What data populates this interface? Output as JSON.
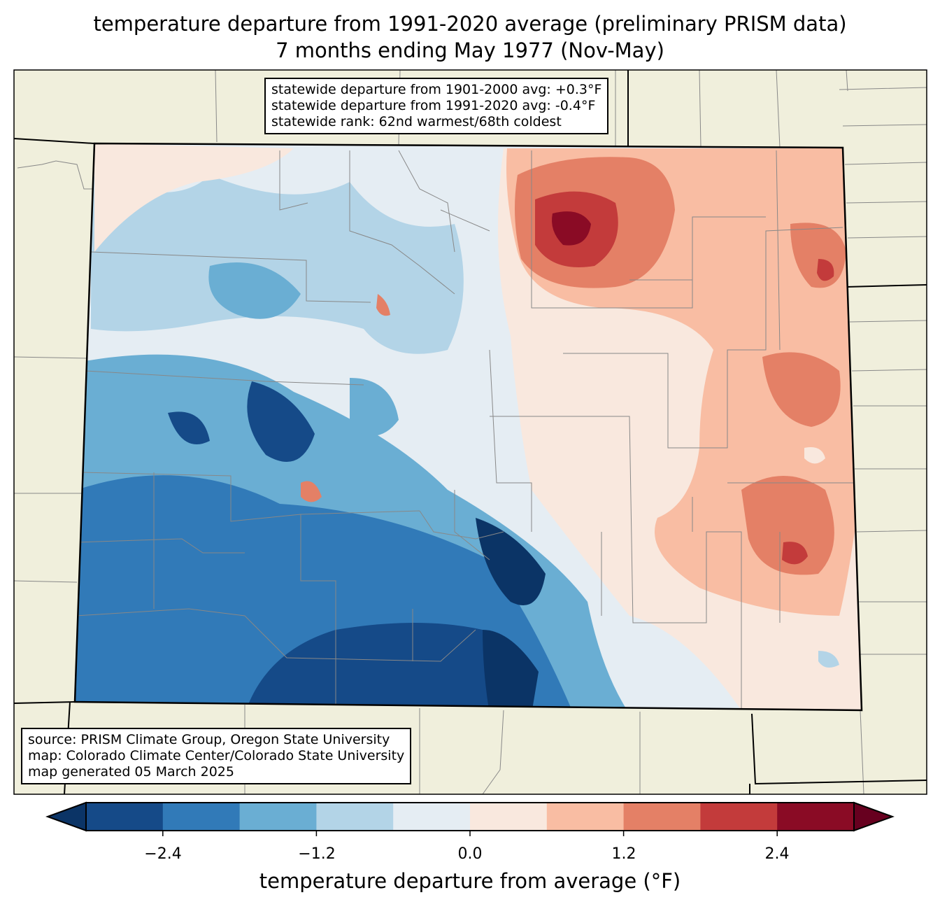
{
  "title": {
    "line1": "temperature departure from 1991-2020 average (preliminary PRISM data)",
    "line2": "7 months ending May 1977 (Nov-May)"
  },
  "stats": {
    "line1": "statewide departure from 1901-2000 avg: +0.3°F",
    "line2": "statewide departure from 1991-2020 avg: -0.4°F",
    "line3": "statewide rank: 62nd warmest/68th coldest"
  },
  "credits": {
    "line1": "source: PRISM Climate Group, Oregon State University",
    "line2": "map: Colorado Climate Center/Colorado State University",
    "line3": "map generated 05 March 2025"
  },
  "colorbar": {
    "label": "temperature departure from average (°F)",
    "ticks": [
      "−2.4",
      "−1.2",
      "0.0",
      "1.2",
      "2.4"
    ],
    "bounds": [
      -3.0,
      -2.4,
      -1.8,
      -1.2,
      -0.6,
      0.0,
      0.6,
      1.2,
      1.8,
      2.4,
      3.0
    ],
    "under": "#0b3466",
    "over": "#67001f",
    "colors": [
      "#154a88",
      "#317ab8",
      "#6aaed3",
      "#b3d4e7",
      "#e5edf3",
      "#f9e8de",
      "#f9bda3",
      "#e48066",
      "#c33b3b",
      "#8a0b25"
    ]
  },
  "colors": {
    "land": "#f0efdc",
    "neutral": "#e5edf3"
  }
}
